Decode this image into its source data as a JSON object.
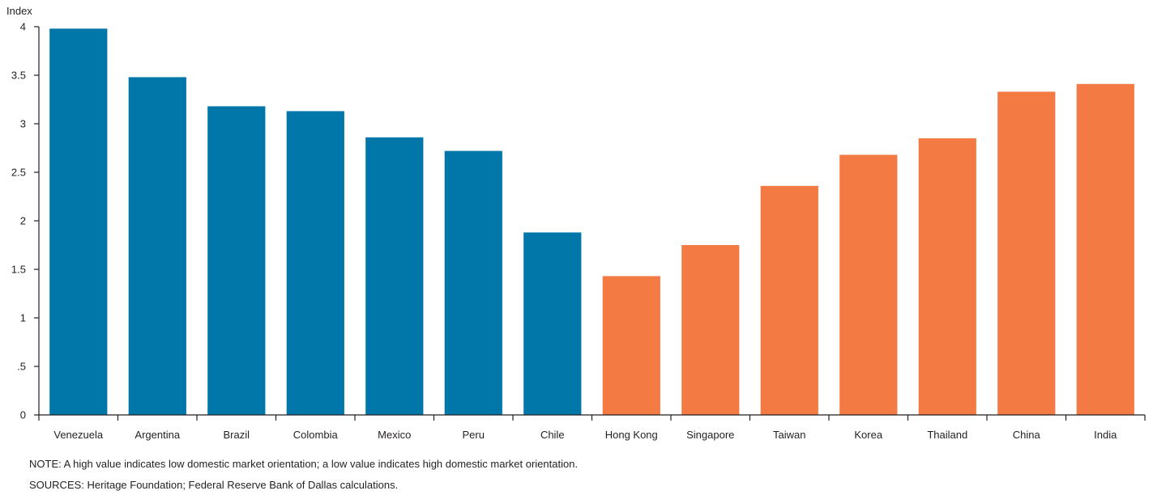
{
  "chart_data": {
    "type": "bar",
    "ylabel": "Index",
    "ylim": [
      0,
      4
    ],
    "yticks": [
      {
        "value": 0,
        "label": "0"
      },
      {
        "value": 0.5,
        "label": ".5"
      },
      {
        "value": 1,
        "label": "1"
      },
      {
        "value": 1.5,
        "label": "1.5"
      },
      {
        "value": 2,
        "label": "2"
      },
      {
        "value": 2.5,
        "label": "2.5"
      },
      {
        "value": 3,
        "label": "3"
      },
      {
        "value": 3.5,
        "label": "3.5"
      },
      {
        "value": 4,
        "label": "4"
      }
    ],
    "grid": false,
    "categories": [
      "Venezuela",
      "Argentina",
      "Brazil",
      "Colombia",
      "Mexico",
      "Peru",
      "Chile",
      "Hong Kong",
      "Singapore",
      "Taiwan",
      "Korea",
      "Thailand",
      "China",
      "India"
    ],
    "values": [
      3.98,
      3.48,
      3.18,
      3.13,
      2.86,
      2.72,
      1.88,
      1.43,
      1.75,
      2.36,
      2.68,
      2.85,
      3.33,
      3.41
    ],
    "bar_colors": [
      "#0077a8",
      "#0077a8",
      "#0077a8",
      "#0077a8",
      "#0077a8",
      "#0077a8",
      "#0077a8",
      "#f37a42",
      "#f37a42",
      "#f37a42",
      "#f37a42",
      "#f37a42",
      "#f37a42",
      "#f37a42"
    ],
    "axis_color": "#231f20"
  },
  "footer": {
    "note": "NOTE: A high value indicates low domestic market orientation; a low value indicates high domestic market orientation.",
    "sources": "SOURCES: Heritage Foundation; Federal Reserve Bank of Dallas calculations."
  }
}
